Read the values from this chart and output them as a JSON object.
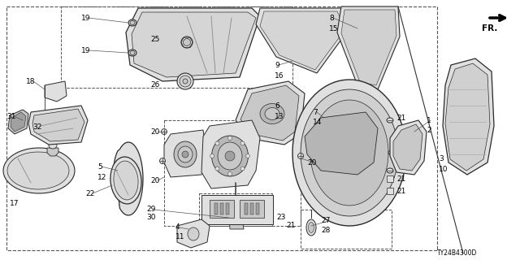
{
  "background_color": "#ffffff",
  "text_color": "#000000",
  "diagram_code": "TY24B4300D",
  "fr_label": "FR.",
  "figsize": [
    6.4,
    3.2
  ],
  "dpi": 100,
  "line_color": "#2a2a2a",
  "gray_fill": "#c8c8c8",
  "light_gray": "#e0e0e0",
  "mid_gray": "#a0a0a0"
}
